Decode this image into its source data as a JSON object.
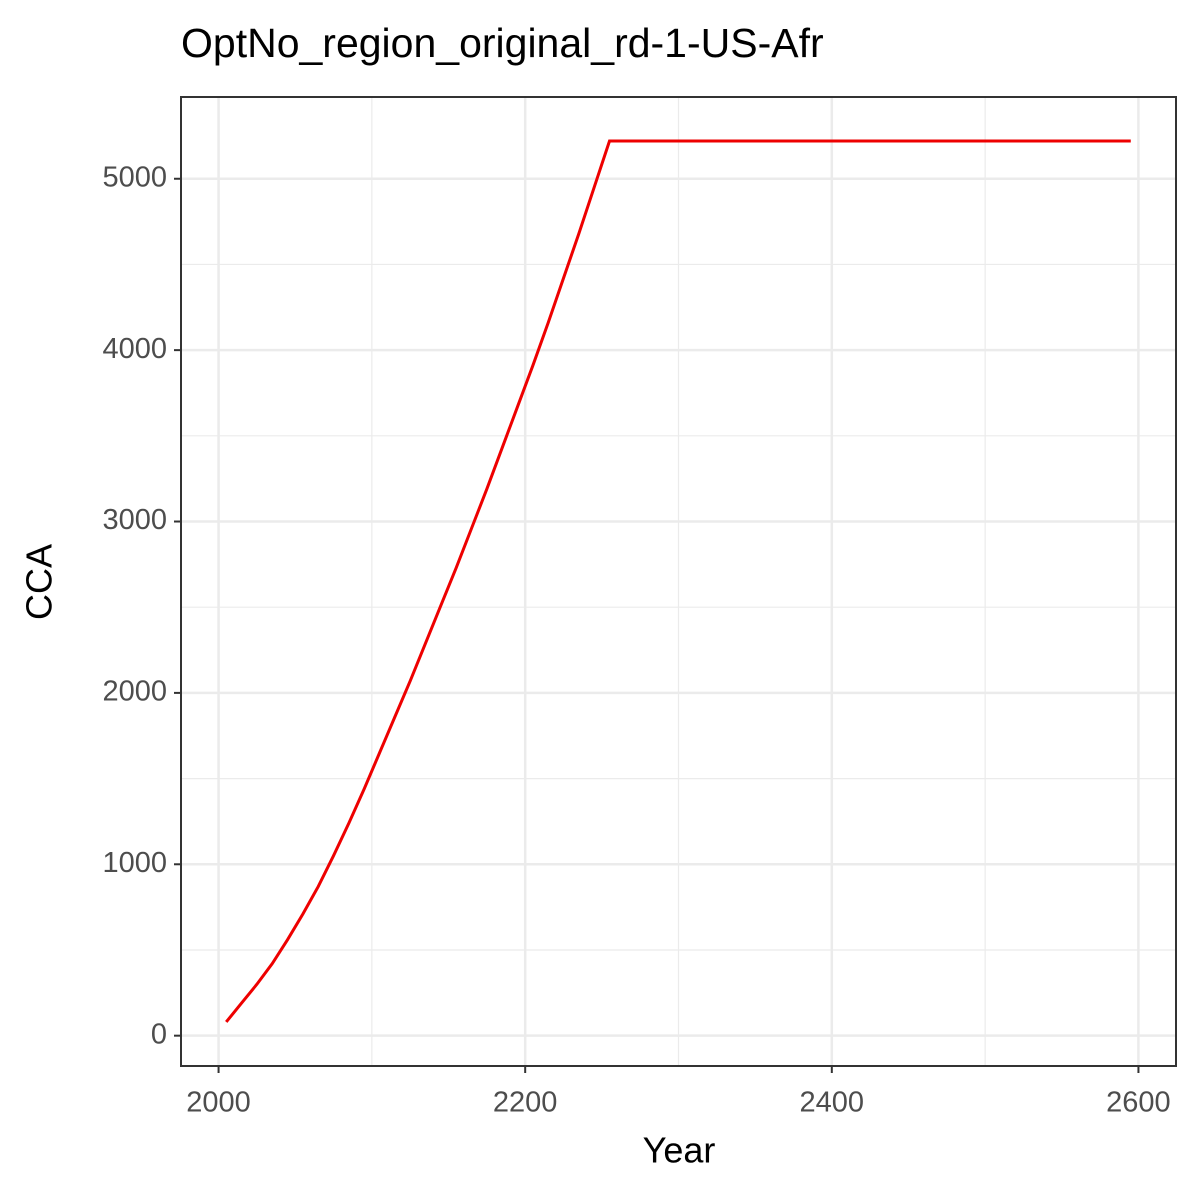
{
  "chart_data": {
    "type": "line",
    "title": "OptNo_region_original_rd-1-US-Afr",
    "x_label": "Year",
    "y_label": "CCA",
    "x": [
      2005,
      2015,
      2025,
      2035,
      2045,
      2055,
      2065,
      2075,
      2085,
      2095,
      2105,
      2115,
      2125,
      2135,
      2145,
      2155,
      2165,
      2175,
      2185,
      2195,
      2205,
      2215,
      2225,
      2235,
      2245,
      2255,
      2265,
      2275,
      2285,
      2295,
      2305,
      2315,
      2325,
      2335,
      2345,
      2355,
      2365,
      2375,
      2385,
      2395,
      2405,
      2415,
      2425,
      2435,
      2445,
      2455,
      2465,
      2475,
      2485,
      2495,
      2505,
      2515,
      2525,
      2535,
      2545,
      2555,
      2565,
      2575,
      2585,
      2595
    ],
    "series": [
      {
        "color": "#ee0000",
        "values": [
          80,
          190,
          300,
          420,
          560,
          710,
          870,
          1050,
          1240,
          1440,
          1650,
          1860,
          2070,
          2290,
          2510,
          2730,
          2960,
          3190,
          3430,
          3670,
          3910,
          4160,
          4420,
          4680,
          4950,
          5220,
          5220,
          5220,
          5220,
          5220,
          5220,
          5220,
          5220,
          5220,
          5220,
          5220,
          5220,
          5220,
          5220,
          5220,
          5220,
          5220,
          5220,
          5220,
          5220,
          5220,
          5220,
          5220,
          5220,
          5220,
          5220,
          5220,
          5220,
          5220,
          5220,
          5220,
          5220,
          5220,
          5220,
          5220
        ]
      }
    ],
    "xlim": [
      1975.5,
      2624.5
    ],
    "ylim": [
      -177,
      5477
    ],
    "xticks": [
      2000,
      2200,
      2400,
      2600
    ],
    "yticks": [
      0,
      1000,
      2000,
      3000,
      4000,
      5000
    ],
    "x_minor_grid": [
      2100,
      2300,
      2500
    ],
    "y_minor_grid": [
      500,
      1500,
      2500,
      3500,
      4500
    ],
    "grid": true
  }
}
